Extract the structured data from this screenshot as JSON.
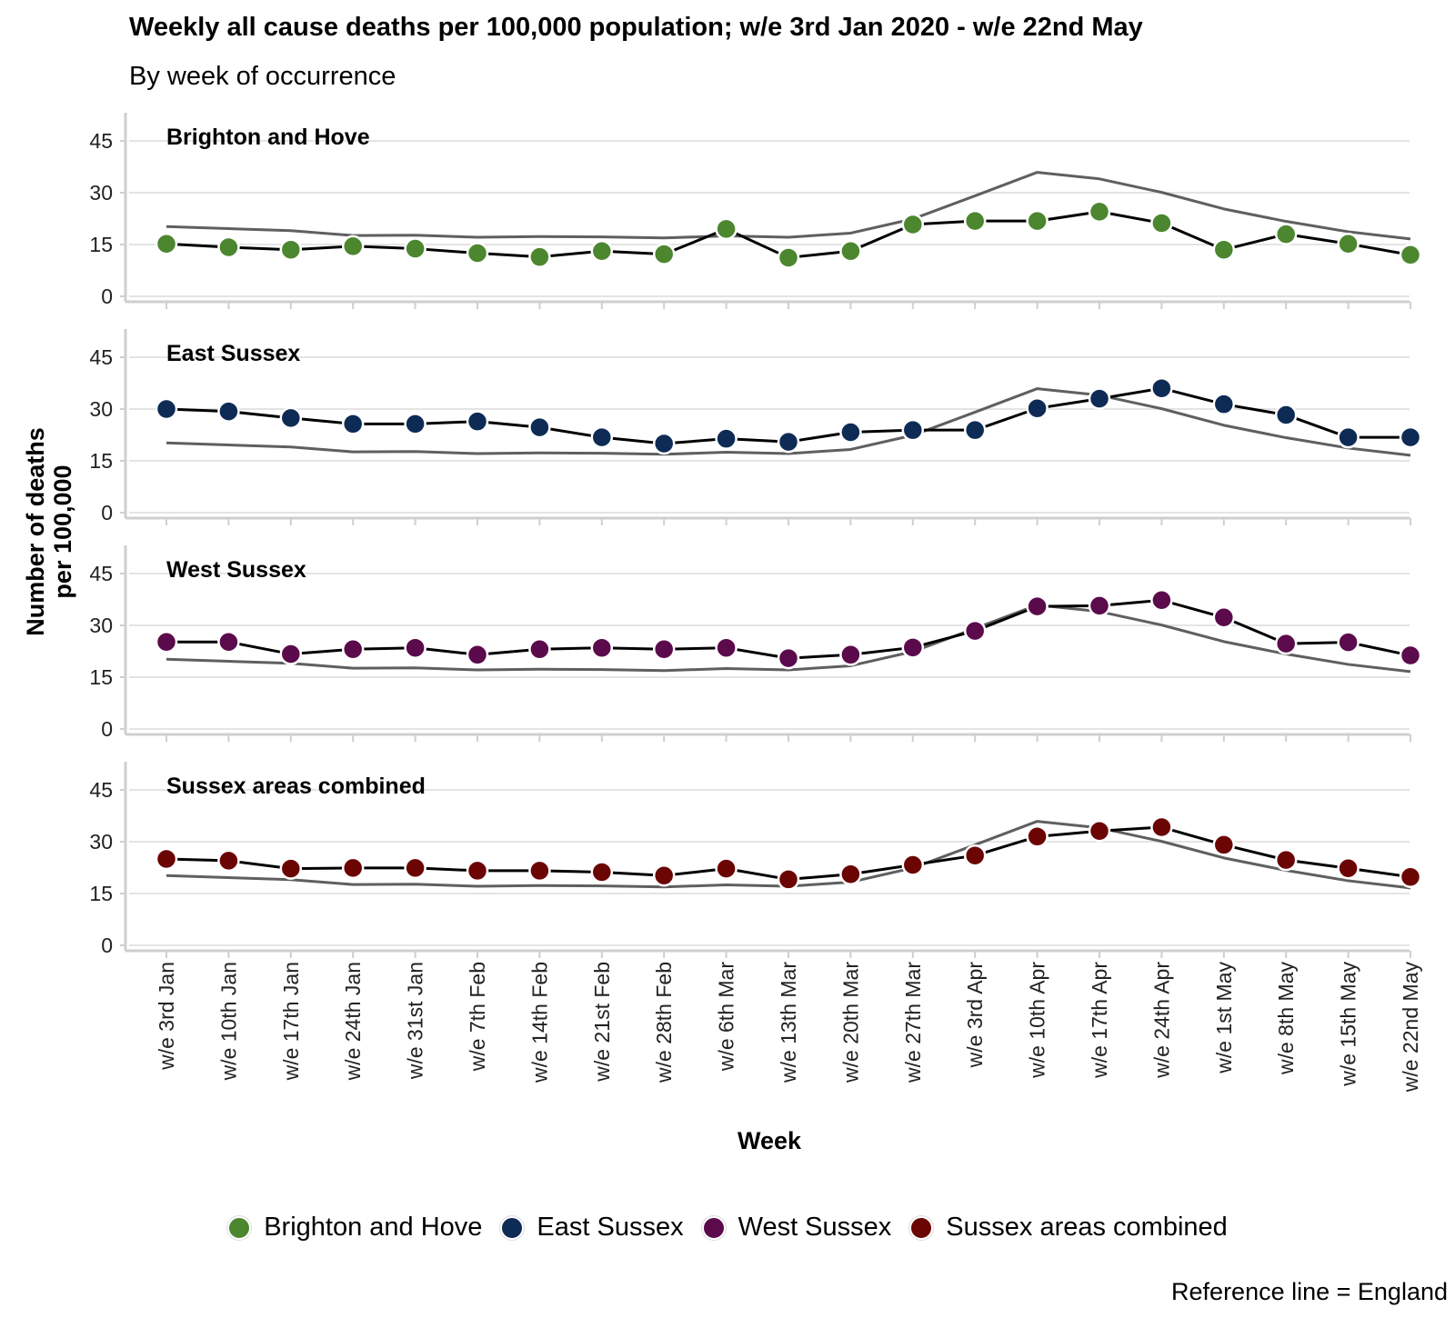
{
  "chart_data": {
    "type": "line",
    "title": "Weekly all cause deaths per 100,000 population; w/e 3rd Jan 2020 - w/e 22nd May",
    "subtitle": "By week of occurrence",
    "xlabel": "Week",
    "ylabel": "Number of deaths per 100,000",
    "caption": "Reference line = England",
    "ylim": [
      0,
      50
    ],
    "yticks": [
      0,
      15,
      30,
      45
    ],
    "grid": true,
    "legend_position": "bottom",
    "categories": [
      "w/e 3rd Jan",
      "w/e 10th Jan",
      "w/e 17th Jan",
      "w/e 24th Jan",
      "w/e 31st Jan",
      "w/e 7th Feb",
      "w/e 14th Feb",
      "w/e 21st Feb",
      "w/e 28th Feb",
      "w/e 6th Mar",
      "w/e 13th Mar",
      "w/e 20th Mar",
      "w/e 27th Mar",
      "w/e 3rd Apr",
      "w/e 10th Apr",
      "w/e 17th Apr",
      "w/e 24th Apr",
      "w/e 1st May",
      "w/e 8th May",
      "w/e 15th May",
      "w/e 22nd May"
    ],
    "reference_series": {
      "name": "England",
      "color": "#5f5f5f",
      "values": [
        20.2,
        19.6,
        19.0,
        17.6,
        17.7,
        17.1,
        17.3,
        17.2,
        16.9,
        17.5,
        17.1,
        18.3,
        22.4,
        29.1,
        35.9,
        34.0,
        30.1,
        25.3,
        21.7,
        18.7,
        16.6
      ]
    },
    "series": [
      {
        "name": "Brighton and Hove",
        "panel_label": "Brighton and Hove",
        "color": "#4c862f",
        "values": [
          15.2,
          14.2,
          13.5,
          14.5,
          13.8,
          12.5,
          11.4,
          13.1,
          12.2,
          19.5,
          11.2,
          13.1,
          20.8,
          21.8,
          21.8,
          24.5,
          21.2,
          13.5,
          18.0,
          15.2,
          12.0
        ]
      },
      {
        "name": "East Sussex",
        "panel_label": "East Sussex",
        "color": "#0d2b55",
        "values": [
          30.0,
          29.3,
          27.4,
          25.7,
          25.7,
          26.4,
          24.7,
          21.8,
          20.0,
          21.4,
          20.5,
          23.3,
          23.9,
          23.9,
          30.2,
          33.0,
          36.0,
          31.4,
          28.3,
          21.8,
          21.8
        ]
      },
      {
        "name": "West Sussex",
        "panel_label": "West Sussex",
        "color": "#5b0a4c",
        "values": [
          25.2,
          25.2,
          21.7,
          23.1,
          23.5,
          21.5,
          23.1,
          23.5,
          23.1,
          23.5,
          20.5,
          21.5,
          23.6,
          28.4,
          35.5,
          35.7,
          37.3,
          32.3,
          24.7,
          25.1,
          21.3
        ]
      },
      {
        "name": "Sussex areas combined",
        "panel_label": "Sussex areas combined",
        "color": "#6b0504",
        "values": [
          25.0,
          24.5,
          22.2,
          22.4,
          22.4,
          21.6,
          21.6,
          21.2,
          20.2,
          22.2,
          19.1,
          20.6,
          23.3,
          26.0,
          31.5,
          33.1,
          34.2,
          29.1,
          24.7,
          22.3,
          19.8
        ]
      }
    ]
  }
}
